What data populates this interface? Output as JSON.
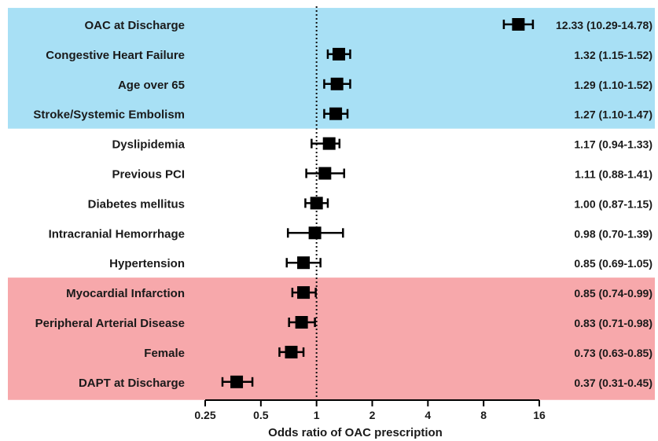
{
  "chart_data": {
    "type": "forest",
    "xlabel": "Odds ratio of OAC prescription",
    "x_scale": "log2",
    "xlim": [
      0.25,
      16
    ],
    "x_ticks": [
      0.25,
      0.5,
      1,
      2,
      4,
      8,
      16
    ],
    "x_tick_labels": [
      "0.25",
      "0.5",
      "1",
      "2",
      "4",
      "8",
      "16"
    ],
    "reference_line": 1,
    "band_colors": {
      "positive": "#a8e0f5",
      "neutral": "#ffffff",
      "negative": "#f7a8ab"
    },
    "marker_color": "#000000",
    "rows": [
      {
        "label": "OAC at Discharge",
        "or": 12.33,
        "lo": 10.29,
        "hi": 14.78,
        "text": "12.33 (10.29-14.78)",
        "group": "positive"
      },
      {
        "label": "Congestive Heart Failure",
        "or": 1.32,
        "lo": 1.15,
        "hi": 1.52,
        "text": "1.32 (1.15-1.52)",
        "group": "positive"
      },
      {
        "label": "Age over 65",
        "or": 1.29,
        "lo": 1.1,
        "hi": 1.52,
        "text": "1.29 (1.10-1.52)",
        "group": "positive"
      },
      {
        "label": "Stroke/Systemic Embolism",
        "or": 1.27,
        "lo": 1.1,
        "hi": 1.47,
        "text": "1.27 (1.10-1.47)",
        "group": "positive"
      },
      {
        "label": "Dyslipidemia",
        "or": 1.17,
        "lo": 0.94,
        "hi": 1.33,
        "text": "1.17 (0.94-1.33)",
        "group": "neutral"
      },
      {
        "label": "Previous PCI",
        "or": 1.11,
        "lo": 0.88,
        "hi": 1.41,
        "text": "1.11 (0.88-1.41)",
        "group": "neutral"
      },
      {
        "label": "Diabetes mellitus",
        "or": 1.0,
        "lo": 0.87,
        "hi": 1.15,
        "text": "1.00 (0.87-1.15)",
        "group": "neutral"
      },
      {
        "label": "Intracranial Hemorrhage",
        "or": 0.98,
        "lo": 0.7,
        "hi": 1.39,
        "text": "0.98 (0.70-1.39)",
        "group": "neutral"
      },
      {
        "label": "Hypertension",
        "or": 0.85,
        "lo": 0.69,
        "hi": 1.05,
        "text": "0.85 (0.69-1.05)",
        "group": "neutral"
      },
      {
        "label": "Myocardial Infarction",
        "or": 0.85,
        "lo": 0.74,
        "hi": 0.99,
        "text": "0.85 (0.74-0.99)",
        "group": "negative"
      },
      {
        "label": "Peripheral Arterial Disease",
        "or": 0.83,
        "lo": 0.71,
        "hi": 0.98,
        "text": "0.83 (0.71-0.98)",
        "group": "negative"
      },
      {
        "label": "Female",
        "or": 0.73,
        "lo": 0.63,
        "hi": 0.85,
        "text": "0.73 (0.63-0.85)",
        "group": "negative"
      },
      {
        "label": "DAPT at Discharge",
        "or": 0.37,
        "lo": 0.31,
        "hi": 0.45,
        "text": "0.37 (0.31-0.45)",
        "group": "negative"
      }
    ]
  }
}
